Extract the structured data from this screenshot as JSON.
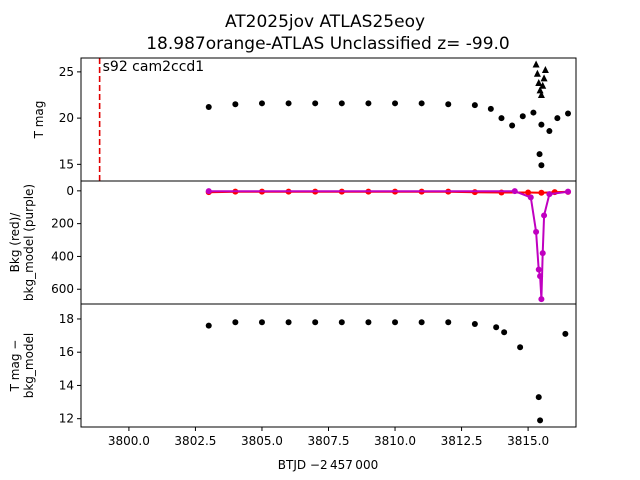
{
  "chart_data": {
    "title_line1": "AT2025jov  ATLAS25eoy",
    "title_line2": "18.987orange-ATLAS Unclassified z= -99.0",
    "xlabel": "BTJD −2 457 000",
    "xlim": [
      3798.2,
      3816.8
    ],
    "xticks": [
      "3800.0",
      "3802.5",
      "3805.0",
      "3807.5",
      "3810.0",
      "3812.5",
      "3815.0"
    ],
    "panels": [
      {
        "type": "scatter",
        "ylabel": "T mag",
        "ylim": [
          26.5,
          13.2
        ],
        "yticks": [
          "15",
          "20",
          "25"
        ],
        "annotation": "s92 cam2ccd1",
        "marker_line_x": 3798.9,
        "marker_line_color": "#e00000",
        "series": [
          {
            "marker": "dot",
            "color": "#000000",
            "x": [
              3803.0,
              3804.0,
              3805.0,
              3806.0,
              3807.0,
              3808.0,
              3809.0,
              3810.0,
              3811.0,
              3812.0,
              3813.0,
              3813.6,
              3814.0,
              3814.4,
              3814.8,
              3815.2,
              3815.5,
              3815.8,
              3816.1,
              3816.5
            ],
            "y": [
              21.2,
              21.5,
              21.6,
              21.6,
              21.6,
              21.6,
              21.6,
              21.6,
              21.6,
              21.5,
              21.4,
              21.0,
              20.0,
              19.2,
              20.2,
              20.6,
              19.3,
              18.6,
              20.0,
              20.5
            ]
          },
          {
            "marker": "dot",
            "color": "#000000",
            "x": [
              3815.43,
              3815.5
            ],
            "y": [
              16.1,
              14.9
            ]
          },
          {
            "marker": "triangle",
            "color": "#000000",
            "x": [
              3815.3,
              3815.35,
              3815.4,
              3815.45,
              3815.5,
              3815.55,
              3815.6,
              3815.65
            ],
            "y": [
              25.8,
              24.8,
              23.8,
              23.0,
              22.5,
              23.5,
              24.3,
              25.2
            ]
          }
        ]
      },
      {
        "type": "line",
        "ylabel": "Bkg (red)/\nbkg_model (purple)",
        "ylim": [
          -60,
          690
        ],
        "yticks": [
          "0",
          "200",
          "400",
          "600"
        ],
        "series": [
          {
            "name": "Bkg",
            "color": "#ff0000",
            "x": [
              3803.0,
              3804.0,
              3805.0,
              3806.0,
              3807.0,
              3808.0,
              3809.0,
              3810.0,
              3811.0,
              3812.0,
              3813.0,
              3814.0,
              3815.0,
              3815.5,
              3816.0,
              3816.5
            ],
            "y": [
              8,
              5,
              5,
              5,
              5,
              5,
              5,
              5,
              5,
              5,
              8,
              10,
              10,
              12,
              8,
              6
            ]
          },
          {
            "name": "bkg_model",
            "color": "#c000c0",
            "x": [
              3803.0,
              3814.5,
              3815.1,
              3815.3,
              3815.4,
              3815.45,
              3815.5,
              3815.55,
              3815.6,
              3815.8,
              3816.5
            ],
            "y": [
              2,
              2,
              40,
              250,
              480,
              520,
              660,
              380,
              150,
              20,
              5
            ]
          }
        ]
      },
      {
        "type": "scatter",
        "ylabel": "T mag −\nbkg_model",
        "ylim": [
          18.9,
          11.5
        ],
        "yticks": [
          "12",
          "14",
          "16",
          "18"
        ],
        "series": [
          {
            "marker": "dot",
            "color": "#000000",
            "x": [
              3803.0,
              3804.0,
              3805.0,
              3806.0,
              3807.0,
              3808.0,
              3809.0,
              3810.0,
              3811.0,
              3812.0,
              3813.0,
              3813.8,
              3814.1,
              3814.7,
              3815.4,
              3815.45,
              3816.4
            ],
            "y": [
              17.6,
              17.8,
              17.8,
              17.8,
              17.8,
              17.8,
              17.8,
              17.8,
              17.8,
              17.8,
              17.7,
              17.5,
              17.2,
              16.3,
              13.3,
              11.9,
              17.1
            ]
          }
        ]
      }
    ]
  }
}
